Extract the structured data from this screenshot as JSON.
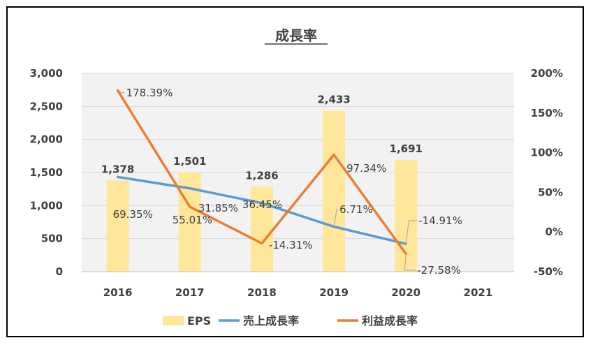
{
  "chart_data": {
    "type": "bar",
    "title": "成長率",
    "categories": [
      "2016",
      "2017",
      "2018",
      "2019",
      "2020",
      "2021"
    ],
    "series": [
      {
        "name": "EPS",
        "type": "bar",
        "axis": "left",
        "values": [
          1378,
          1501,
          1286,
          2433,
          1691,
          null
        ],
        "labels": [
          "1,378",
          "1,501",
          "1,286",
          "2,433",
          "1,691",
          ""
        ]
      },
      {
        "name": "売上成長率",
        "type": "line",
        "axis": "right",
        "values": [
          69.35,
          55.01,
          36.45,
          6.71,
          -14.91,
          null
        ],
        "labels": [
          "69.35%",
          "55.01%",
          "36.45%",
          "6.71%",
          "-14.91%",
          ""
        ]
      },
      {
        "name": "利益成長率",
        "type": "line",
        "axis": "right",
        "values": [
          178.39,
          31.85,
          -14.31,
          97.34,
          -27.58,
          null
        ],
        "labels": [
          "178.39%",
          "31.85%",
          "-14.31%",
          "97.34%",
          "-27.58%",
          ""
        ]
      }
    ],
    "y_left": {
      "ylim": [
        0,
        3000
      ],
      "ticks": [
        0,
        500,
        1000,
        1500,
        2000,
        2500,
        3000
      ],
      "tick_labels": [
        "0",
        "500",
        "1,000",
        "1,500",
        "2,000",
        "2,500",
        "3,000"
      ]
    },
    "y_right": {
      "ylim": [
        -50,
        200
      ],
      "ticks": [
        -50,
        0,
        50,
        100,
        150,
        200
      ],
      "tick_labels": [
        "-50%",
        "0%",
        "50%",
        "100%",
        "150%",
        "200%"
      ]
    },
    "grid": true,
    "legend_position": "bottom",
    "colors": {
      "EPS": "#FFE699",
      "売上成長率": "#5B9BD5",
      "利益成長率": "#ED7D31",
      "plot_bg": "#F2F2F2",
      "grid": "#D9D9D9"
    }
  }
}
